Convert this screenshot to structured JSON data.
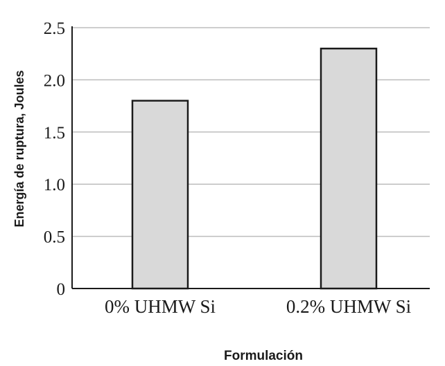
{
  "chart_data": {
    "type": "bar",
    "categories": [
      "0% UHMW Si",
      "0.2% UHMW Si"
    ],
    "values": [
      1.8,
      2.3
    ],
    "title": "",
    "xlabel": "Formulación",
    "ylabel": "Energía de ruptura, Joules",
    "ylim": [
      0,
      2.5
    ],
    "yticks": [
      0,
      0.5,
      1.0,
      1.5,
      2.0,
      2.5
    ],
    "ytick_labels": [
      "0",
      "0.5",
      "1.0",
      "1.5",
      "2.0",
      "2.5"
    ],
    "grid": true,
    "colors": {
      "bar_fill": "#d9d9d9",
      "bar_stroke": "#1a1a1a",
      "grid": "#bdbdbd",
      "axis": "#1a1a1a"
    }
  }
}
